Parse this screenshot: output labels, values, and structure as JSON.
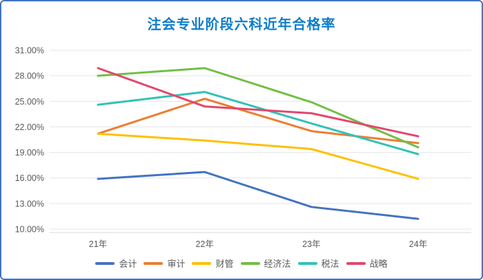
{
  "page": {
    "title": "注会专业阶段六科近年合格率"
  },
  "chart_data": {
    "type": "line",
    "title": "注会专业阶段六科近年合格率",
    "categories": [
      "21年",
      "22年",
      "23年",
      "24年"
    ],
    "series": [
      {
        "id": "accounting",
        "name": "会计",
        "color": "#4472C4",
        "values": [
          15.9,
          16.7,
          12.6,
          11.2
        ]
      },
      {
        "id": "auditing",
        "name": "审计",
        "color": "#ED7D31",
        "values": [
          21.2,
          25.3,
          21.5,
          20.1
        ]
      },
      {
        "id": "financial-management",
        "name": "财管",
        "color": "#FFC000",
        "values": [
          21.2,
          20.4,
          19.4,
          15.9
        ]
      },
      {
        "id": "economic-law",
        "name": "经济法",
        "color": "#71BF45",
        "values": [
          28.0,
          28.9,
          24.9,
          19.6
        ]
      },
      {
        "id": "tax-law",
        "name": "税法",
        "color": "#31C2B8",
        "values": [
          24.6,
          26.1,
          22.4,
          18.8
        ]
      },
      {
        "id": "strategy",
        "name": "战略",
        "color": "#E2486B",
        "values": [
          28.9,
          24.4,
          23.6,
          20.9
        ]
      }
    ],
    "y_axis": {
      "min": 10,
      "max": 31,
      "step": 3,
      "tick_labels": [
        "10.00%",
        "13.00%",
        "16.00%",
        "19.00%",
        "22.00%",
        "25.00%",
        "28.00%",
        "31.00%"
      ],
      "unit": "%"
    },
    "grid": true,
    "legend_position": "bottom"
  },
  "colors": {
    "frame_border": "#4472C4",
    "title_text": "#0F7DC9",
    "axis_text": "#595959",
    "gridline": "#E4E4E4"
  }
}
